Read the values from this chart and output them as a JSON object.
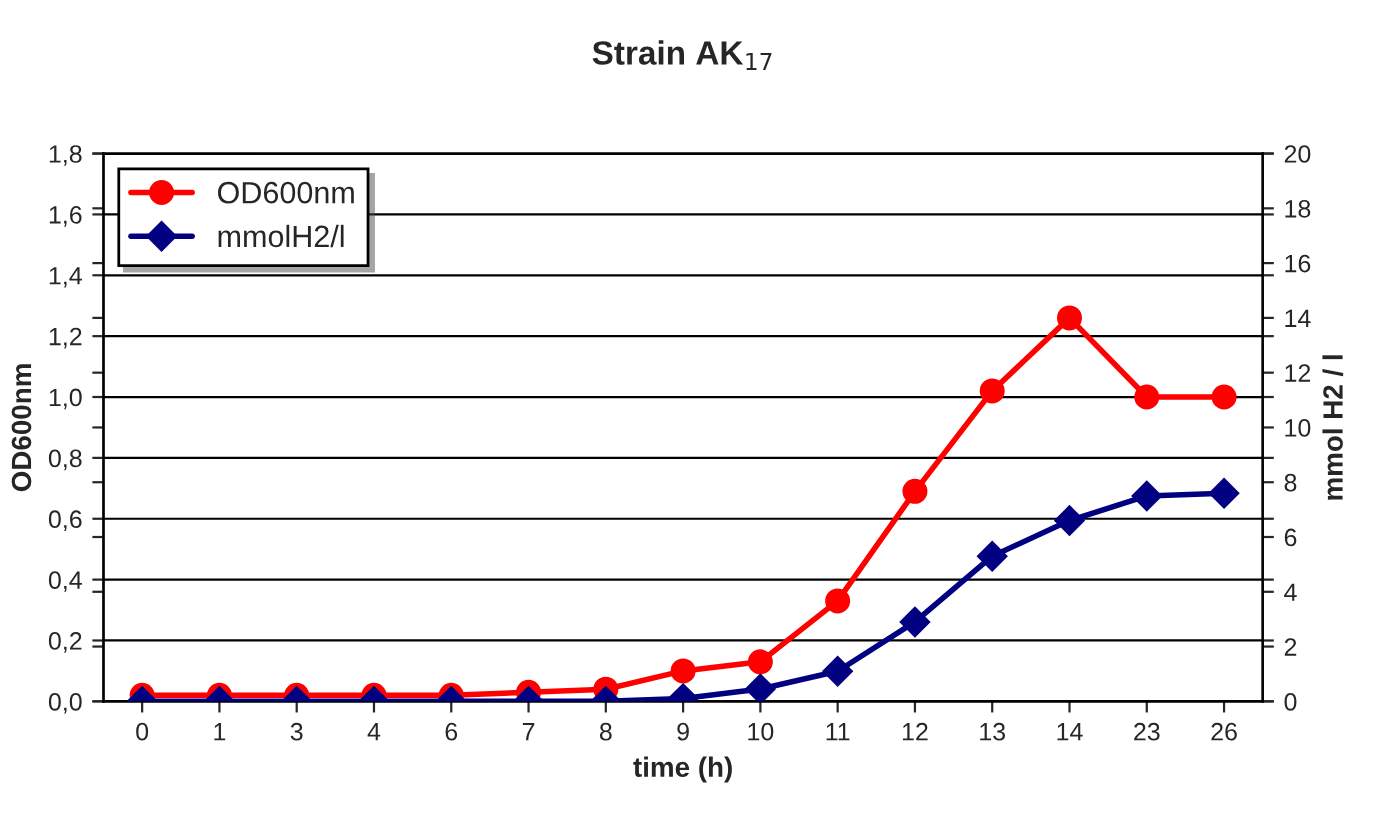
{
  "chart_data": {
    "type": "line",
    "title": "Strain AK$_{17}$",
    "xlabel": "time (h)",
    "ylabel": "OD600nm",
    "y2label": "mmol H2 / l",
    "categories": [
      "0",
      "1",
      "3",
      "4",
      "6",
      "7",
      "8",
      "9",
      "10",
      "11",
      "12",
      "13",
      "14",
      "23",
      "26"
    ],
    "series": [
      {
        "name": "OD600nm",
        "color": "#ff0000",
        "marker": "circle",
        "values": [
          0.02,
          0.02,
          0.02,
          0.02,
          0.02,
          0.03,
          0.04,
          0.1,
          0.13,
          0.33,
          0.69,
          1.02,
          1.26,
          1.0,
          1.0
        ]
      },
      {
        "name": "mmolH2/l",
        "color": "#000080",
        "marker": "diamond",
        "axis": "y2",
        "values": [
          0,
          0,
          0,
          0,
          0,
          0,
          0,
          0.1,
          0.45,
          1.1,
          2.9,
          5.3,
          6.6,
          7.5,
          7.6
        ]
      }
    ],
    "ylim": [
      0,
      1.8
    ],
    "yticks": [
      {
        "value": 0,
        "label": "0,0"
      },
      {
        "value": 0.2,
        "label": "0,2"
      },
      {
        "value": 0.4,
        "label": "0,4"
      },
      {
        "value": 0.6,
        "label": "0,6"
      },
      {
        "value": 0.8,
        "label": "0,8"
      },
      {
        "value": 1.0,
        "label": "1,0"
      },
      {
        "value": 1.2,
        "label": "1,2"
      },
      {
        "value": 1.4,
        "label": "1,4"
      },
      {
        "value": 1.6,
        "label": "1,6"
      },
      {
        "value": 1.8,
        "label": "1,8"
      }
    ],
    "y2lim": [
      0,
      20
    ],
    "y2ticks": [
      0,
      2,
      4,
      6,
      8,
      10,
      12,
      14,
      16,
      18,
      20
    ],
    "grid": "y",
    "legend": "top left",
    "line_style": "solid"
  }
}
